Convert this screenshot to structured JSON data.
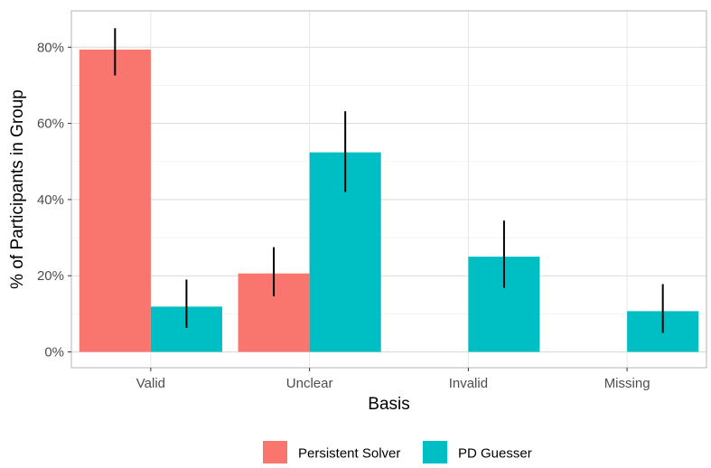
{
  "chart_data": {
    "type": "bar",
    "xlabel": "Basis",
    "ylabel": "% of Participants in Group",
    "categories": [
      "Valid",
      "Unclear",
      "Invalid",
      "Missing"
    ],
    "ylim": [
      0,
      0.85
    ],
    "y_ticks": [
      0,
      0.2,
      0.4,
      0.6,
      0.8
    ],
    "y_tick_labels": [
      "0%",
      "20%",
      "40%",
      "60%",
      "80%"
    ],
    "grid": true,
    "legend_position": "bottom",
    "series": [
      {
        "name": "Persistent Solver",
        "color": "#F8766D",
        "values": [
          0.794,
          0.206,
          0,
          0
        ],
        "error_low": [
          0.726,
          0.146,
          0,
          0
        ],
        "error_high": [
          0.85,
          0.275,
          0,
          0
        ]
      },
      {
        "name": "PD Guesser",
        "color": "#00BFC4",
        "values": [
          0.119,
          0.524,
          0.25,
          0.107
        ],
        "error_low": [
          0.063,
          0.42,
          0.168,
          0.05
        ],
        "error_high": [
          0.19,
          0.632,
          0.345,
          0.178
        ]
      }
    ]
  }
}
